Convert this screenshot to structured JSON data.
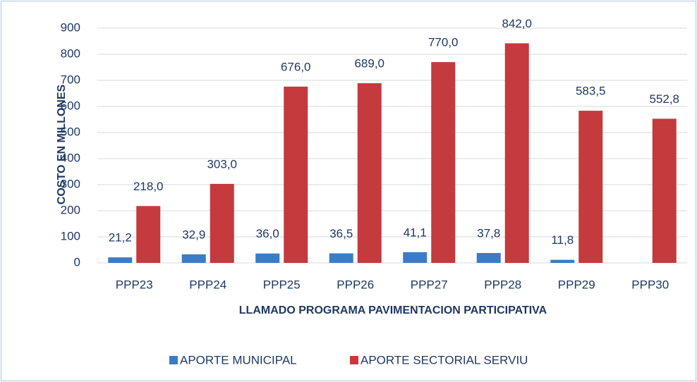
{
  "chart_data": {
    "type": "bar",
    "y_label": "COSTO EN MILLONES",
    "x_label": "LLAMADO PROGRAMA PAVIMENTACION PARTICIPATIVA",
    "categories": [
      "PPP23",
      "PPP24",
      "PPP25",
      "PPP26",
      "PPP27",
      "PPP28",
      "PPP29",
      "PPP30"
    ],
    "series": [
      {
        "name": "APORTE MUNICIPAL",
        "color": "#3b7bc8",
        "values": [
          21.2,
          32.9,
          36.0,
          36.5,
          41.1,
          37.8,
          11.8,
          null
        ],
        "value_labels": [
          "21,2",
          "32,9",
          "36,0",
          "36,5",
          "41,1",
          "37,8",
          "11,8",
          null
        ]
      },
      {
        "name": "APORTE SECTORIAL SERVIU",
        "color": "#c53a3c",
        "values": [
          218.0,
          303.0,
          676.0,
          689.0,
          770.0,
          842.0,
          583.5,
          552.8
        ],
        "value_labels": [
          "218,0",
          "303,0",
          "676,0",
          "689,0",
          "770,0",
          "842,0",
          "583,5",
          "552,8"
        ]
      }
    ],
    "ylim": [
      0,
      900
    ],
    "yticks": [
      0,
      100,
      200,
      300,
      400,
      500,
      600,
      700,
      800,
      900
    ],
    "grid": true,
    "legend": "bottom"
  }
}
